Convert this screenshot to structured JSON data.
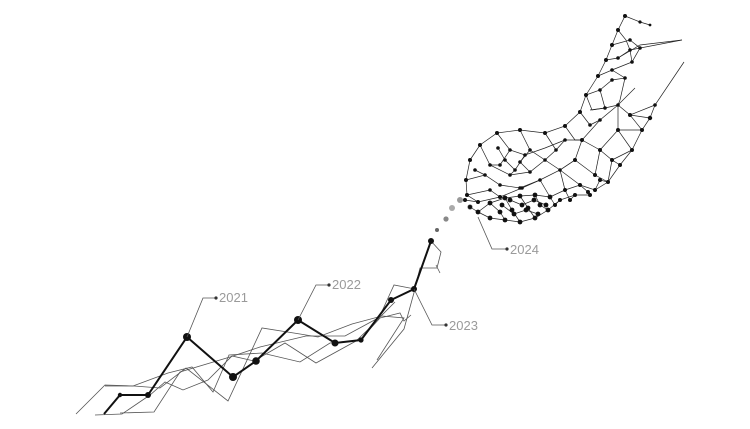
{
  "annotations": {
    "year_2021": "2021",
    "year_2022": "2022",
    "year_2023": "2023",
    "year_2024": "2024"
  },
  "colors": {
    "main_line": "#111111",
    "thin_line": "#555555",
    "label": "#9a9a9a",
    "background": "#ffffff"
  },
  "graphic": {
    "style": "low-poly network line illustration with a hand formed from connected nodes",
    "hand_shape": "hand-icon"
  }
}
